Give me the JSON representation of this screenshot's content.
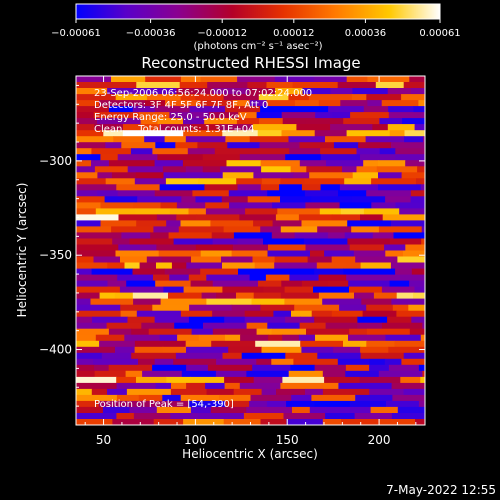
{
  "chart_data": {
    "type": "heatmap",
    "title": "Reconstructed RHESSI Image",
    "xlabel": "Heliocentric X (arcsec)",
    "ylabel": "Heliocentric Y (arcsec)",
    "xlim": [
      35,
      225
    ],
    "ylim": [
      -440,
      -255
    ],
    "xticks": [
      "50",
      "100",
      "150",
      "200"
    ],
    "xtick_values": [
      50,
      100,
      150,
      200
    ],
    "yticks": [
      "−300",
      "−350",
      "−400"
    ],
    "ytick_values": [
      -300,
      -350,
      -400
    ],
    "colorbar": {
      "ticks": [
        "−0.00061",
        "−0.00036",
        "−0.00012",
        "0.00012",
        "0.00036",
        "0.00061"
      ],
      "tick_values": [
        -0.00061,
        -0.00036,
        -0.00012,
        0.00012,
        0.00036,
        0.00061
      ],
      "range": [
        -0.00061,
        0.00061
      ],
      "units": "(photons cm⁻² s⁻¹ asec⁻²)",
      "colormap": [
        "#0000ff",
        "#5a00c8",
        "#8a0090",
        "#b40028",
        "#e63200",
        "#ff7800",
        "#ffc800",
        "#ffffff"
      ]
    },
    "annotations": [
      "23-Sep-2006 06:56:24.000 to 07:02:24.000",
      "Detectors: 3F 4F 5F 6F 7F 8F, Att 0",
      "Energy Range: 25.0 - 50.0 keV",
      "Clean     Total counts: 1.31E+04"
    ],
    "peak_text": "Position of Peak = [54,-390]",
    "peak": [
      54,
      -390
    ]
  },
  "footer": {
    "timestamp": "7-May-2022 12:55"
  }
}
